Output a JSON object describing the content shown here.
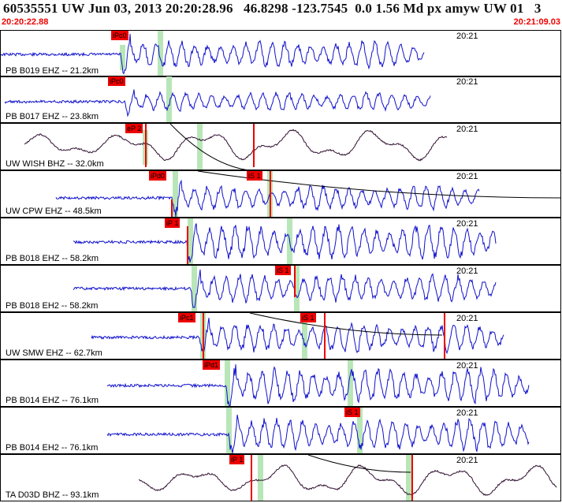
{
  "header": {
    "title": "60535551 UW Jun 03, 2013 20:20:28.96   46.8298 -123.7545  0.0 1.56 Md px amyw UW 01   3",
    "start_time": "20:20:22.88",
    "end_time": "20:21:09.03"
  },
  "colors": {
    "trace_blue": "#1010cc",
    "trace_black": "#301030",
    "pick_red": "#e00000",
    "window_green": "#b8e6b8"
  },
  "traces": [
    {
      "label": "PB B019 EHZ -- 21.2km",
      "time": "20:21",
      "color": "blue",
      "picks": [
        "iPc0"
      ]
    },
    {
      "label": "PB B017 EHZ -- 23.8km",
      "time": "20:21",
      "color": "blue",
      "picks": [
        "iPc0"
      ]
    },
    {
      "label": "UW WISH BHZ -- 32.0km",
      "time": "20:21",
      "color": "black",
      "picks": [
        "eP 2"
      ]
    },
    {
      "label": "UW CPW EHZ -- 48.5km",
      "time": "20:21",
      "color": "blue",
      "picks": [
        "iPd0",
        "iS 1"
      ]
    },
    {
      "label": "PB B018 EHZ -- 58.2km",
      "time": "20:21",
      "color": "blue",
      "picks": [
        "iP 1"
      ]
    },
    {
      "label": "PB B018 EH2 -- 58.2km",
      "time": "20:21",
      "color": "blue",
      "picks": [
        "iS 1"
      ]
    },
    {
      "label": "UW SMW EHZ -- 62.7km",
      "time": "20:21",
      "color": "blue",
      "picks": [
        "iPc1",
        "iS 1"
      ]
    },
    {
      "label": "PB B014 EHZ -- 76.1km",
      "time": "20:21",
      "color": "blue",
      "picks": [
        "iPd1"
      ]
    },
    {
      "label": "PB B014 EH2 -- 76.1km",
      "time": "20:21",
      "color": "blue",
      "picks": [
        "iS 1"
      ]
    },
    {
      "label": "TA D03D BHZ -- 93.1km",
      "time": "20:21",
      "color": "black",
      "picks": [
        "iP 1"
      ]
    }
  ]
}
